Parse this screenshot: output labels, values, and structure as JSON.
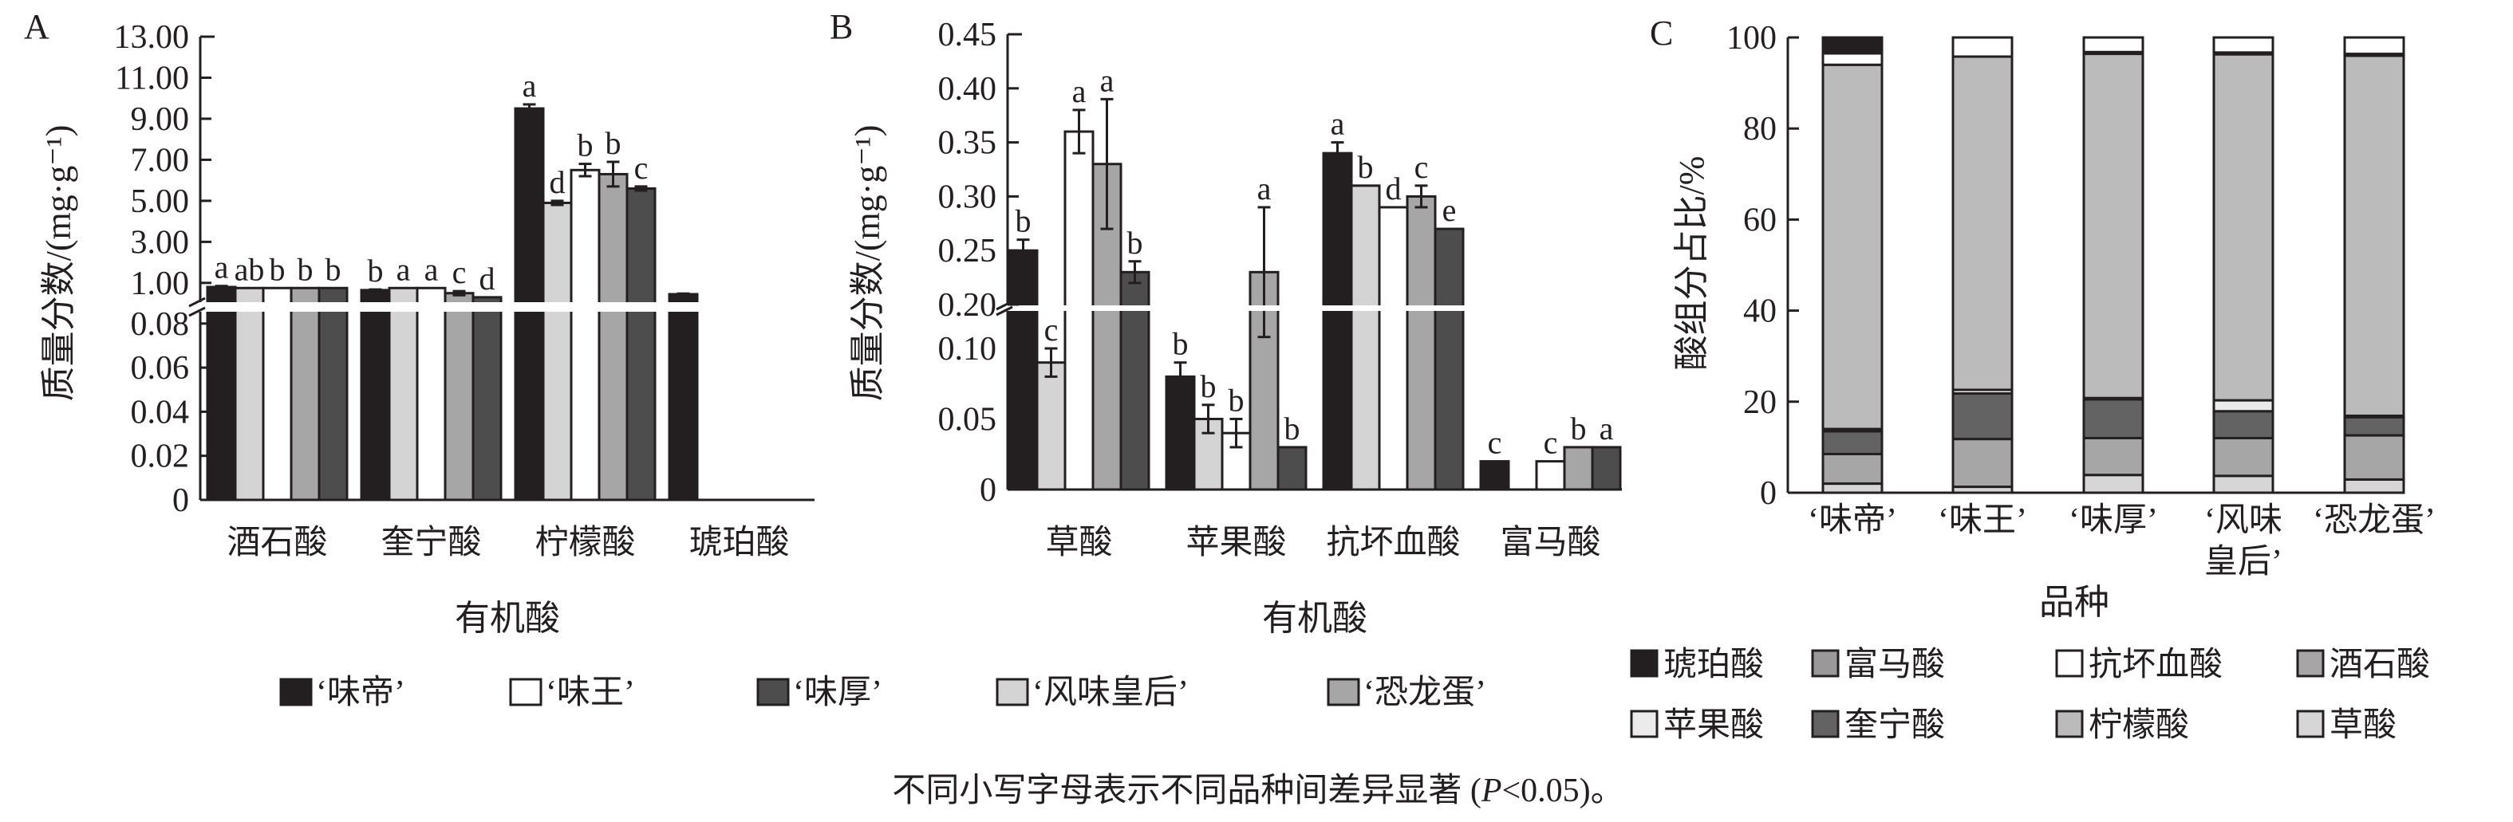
{
  "chart_data": [
    {
      "panel": "A",
      "type": "bar",
      "ylabel": "质量分数/(mg·g⁻¹)",
      "xlabel": "有机酸",
      "categories": [
        "酒石酸",
        "奎宁酸",
        "柠檬酸",
        "琥珀酸"
      ],
      "y_break": true,
      "lower_ylim": [
        0,
        0.085
      ],
      "upper_ylim": [
        0.1,
        13
      ],
      "lower_ticks": [
        "0",
        "0.02",
        "0.04",
        "0.06",
        "0.08"
      ],
      "lower_tick_values": [
        0,
        0.02,
        0.04,
        0.06,
        0.08
      ],
      "upper_ticks": [
        "1.00",
        "3.00",
        "5.00",
        "7.00",
        "9.00",
        "11.00",
        "13.00"
      ],
      "upper_tick_values": [
        1,
        3,
        5,
        7,
        9,
        11,
        13
      ],
      "series": [
        {
          "name": "‘味帝’",
          "color": "#231f20",
          "values": [
            0.8,
            0.65,
            9.5,
            0.45
          ],
          "errors": [
            0.05,
            0.03,
            0.2,
            0.03
          ],
          "letters": [
            "a",
            "b",
            "a",
            ""
          ]
        },
        {
          "name": "‘风味皇后’",
          "color": "#d4d4d4",
          "values": [
            0.75,
            0.75,
            4.9,
            null
          ],
          "errors": [
            0,
            0,
            0.1,
            0
          ],
          "letters": [
            "ab",
            "a",
            "d",
            ""
          ]
        },
        {
          "name": "‘味王’",
          "color": "#ffffff",
          "values": [
            0.75,
            0.75,
            6.5,
            null
          ],
          "errors": [
            0,
            0,
            0.3,
            0
          ],
          "letters": [
            "b",
            "a",
            "b",
            ""
          ]
        },
        {
          "name": "‘恐龙蛋’",
          "color": "#a6a6a6",
          "values": [
            0.75,
            0.5,
            6.3,
            null
          ],
          "errors": [
            0,
            0.1,
            0.6,
            0
          ],
          "letters": [
            "b",
            "c",
            "b",
            ""
          ]
        },
        {
          "name": "‘味厚’",
          "color": "#4d4d4d",
          "values": [
            0.75,
            0.3,
            5.6,
            null
          ],
          "errors": [
            0,
            0,
            0.1,
            0
          ],
          "letters": [
            "b",
            "d",
            "c",
            ""
          ]
        }
      ]
    },
    {
      "panel": "B",
      "type": "bar",
      "ylabel": "质量分数/(mg·g⁻¹)",
      "xlabel": "有机酸",
      "categories": [
        "草酸",
        "苹果酸",
        "抗坏血酸",
        "富马酸"
      ],
      "y_break": true,
      "lower_ylim": [
        0,
        0.126
      ],
      "upper_ylim": [
        0.2,
        0.45
      ],
      "lower_ticks": [
        "0",
        "0.05",
        "0.10"
      ],
      "lower_tick_values": [
        0,
        0.05,
        0.1
      ],
      "upper_ticks": [
        "0.20",
        "0.25",
        "0.30",
        "0.35",
        "0.40",
        "0.45"
      ],
      "upper_tick_values": [
        0.2,
        0.25,
        0.3,
        0.35,
        0.4,
        0.45
      ],
      "series": [
        {
          "name": "‘味帝’",
          "color": "#231f20",
          "values": [
            0.25,
            0.08,
            0.34,
            0.02
          ],
          "errors": [
            0.01,
            0.01,
            0.01,
            0
          ],
          "letters": [
            "b",
            "b",
            "a",
            "c"
          ]
        },
        {
          "name": "‘风味皇后’",
          "color": "#d4d4d4",
          "values": [
            0.09,
            0.05,
            0.31,
            null
          ],
          "errors": [
            0.01,
            0.01,
            0,
            0
          ],
          "letters": [
            "c",
            "b",
            "b",
            ""
          ]
        },
        {
          "name": "‘味王’",
          "color": "#ffffff",
          "values": [
            0.36,
            0.04,
            0.29,
            0.02
          ],
          "errors": [
            0.02,
            0.01,
            0,
            0
          ],
          "letters": [
            "a",
            "b",
            "d",
            "c"
          ]
        },
        {
          "name": "‘恐龙蛋’",
          "color": "#a6a6a6",
          "values": [
            0.33,
            0.23,
            0.3,
            0.03
          ],
          "errors": [
            0.06,
            0.06,
            0.01,
            0
          ],
          "letters": [
            "a",
            "a",
            "c",
            "b"
          ]
        },
        {
          "name": "‘味厚’",
          "color": "#4d4d4d",
          "values": [
            0.23,
            0.03,
            0.27,
            0.03
          ],
          "errors": [
            0.01,
            0,
            0,
            0
          ],
          "letters": [
            "b",
            "b",
            "e",
            "a"
          ]
        }
      ]
    },
    {
      "panel": "C",
      "type": "stacked-bar",
      "ylabel": "酸组分占比/%",
      "xlabel": "品种",
      "ylim": [
        0,
        100
      ],
      "ticks": [
        "0",
        "20",
        "40",
        "60",
        "80",
        "100"
      ],
      "tick_values": [
        0,
        20,
        40,
        60,
        80,
        100
      ],
      "categories": [
        [
          "‘味帝’"
        ],
        [
          "‘味王’"
        ],
        [
          "‘味厚’"
        ],
        [
          "‘风味",
          "皇后’"
        ],
        [
          "‘恐龙蛋’"
        ]
      ],
      "stack_order": [
        "草酸",
        "酒石酸",
        "奎宁酸",
        "苹果酸",
        "柠檬酸",
        "富马酸",
        "抗坏血酸",
        "琥珀酸"
      ],
      "series": [
        {
          "name": "草酸",
          "color": "#d6d6d6",
          "values": [
            2.0,
            1.3,
            3.9,
            3.7,
            2.9
          ]
        },
        {
          "name": "酒石酸",
          "color": "#a6a6a6",
          "values": [
            6.5,
            10.5,
            8.1,
            8.3,
            9.7
          ]
        },
        {
          "name": "奎宁酸",
          "color": "#636363",
          "values": [
            5.0,
            10.0,
            8.5,
            5.9,
            4.0
          ]
        },
        {
          "name": "苹果酸",
          "color": "#ebebeb",
          "values": [
            0.5,
            0.8,
            0.3,
            2.4,
            0.3
          ]
        },
        {
          "name": "柠檬酸",
          "color": "#bbbbbb",
          "values": [
            80.0,
            73.2,
            75.6,
            76.0,
            79.1
          ]
        },
        {
          "name": "富马酸",
          "color": "#999999",
          "values": [
            0.0,
            0.0,
            0.4,
            0.4,
            0.4
          ]
        },
        {
          "name": "抗坏血酸",
          "color": "#ffffff",
          "values": [
            2.5,
            4.2,
            3.2,
            3.3,
            3.6
          ]
        },
        {
          "name": "琥珀酸",
          "color": "#231f20",
          "values": [
            3.5,
            0.0,
            0.0,
            0.0,
            0.0
          ]
        }
      ]
    }
  ],
  "panel_labels": [
    "A",
    "B",
    "C"
  ],
  "variety_legend": [
    {
      "label": "‘味帝’",
      "color": "#231f20"
    },
    {
      "label": "‘味王’",
      "color": "#ffffff"
    },
    {
      "label": "‘味厚’",
      "color": "#4d4d4d"
    },
    {
      "label": "‘风味皇后’",
      "color": "#d4d4d4"
    },
    {
      "label": "‘恐龙蛋’",
      "color": "#a6a6a6"
    }
  ],
  "acid_legend": [
    {
      "label": "琥珀酸",
      "color": "#231f20"
    },
    {
      "label": "富马酸",
      "color": "#999999"
    },
    {
      "label": "抗坏血酸",
      "color": "#ffffff"
    },
    {
      "label": "酒石酸",
      "color": "#a6a6a6"
    },
    {
      "label": "苹果酸",
      "color": "#ebebeb"
    },
    {
      "label": "奎宁酸",
      "color": "#636363"
    },
    {
      "label": "柠檬酸",
      "color": "#bbbbbb"
    },
    {
      "label": "草酸",
      "color": "#d6d6d6"
    }
  ],
  "footnote": {
    "before": "不同小写字母表示不同品种间差异显著 (",
    "p": "P",
    "after": "<0.05)。"
  }
}
